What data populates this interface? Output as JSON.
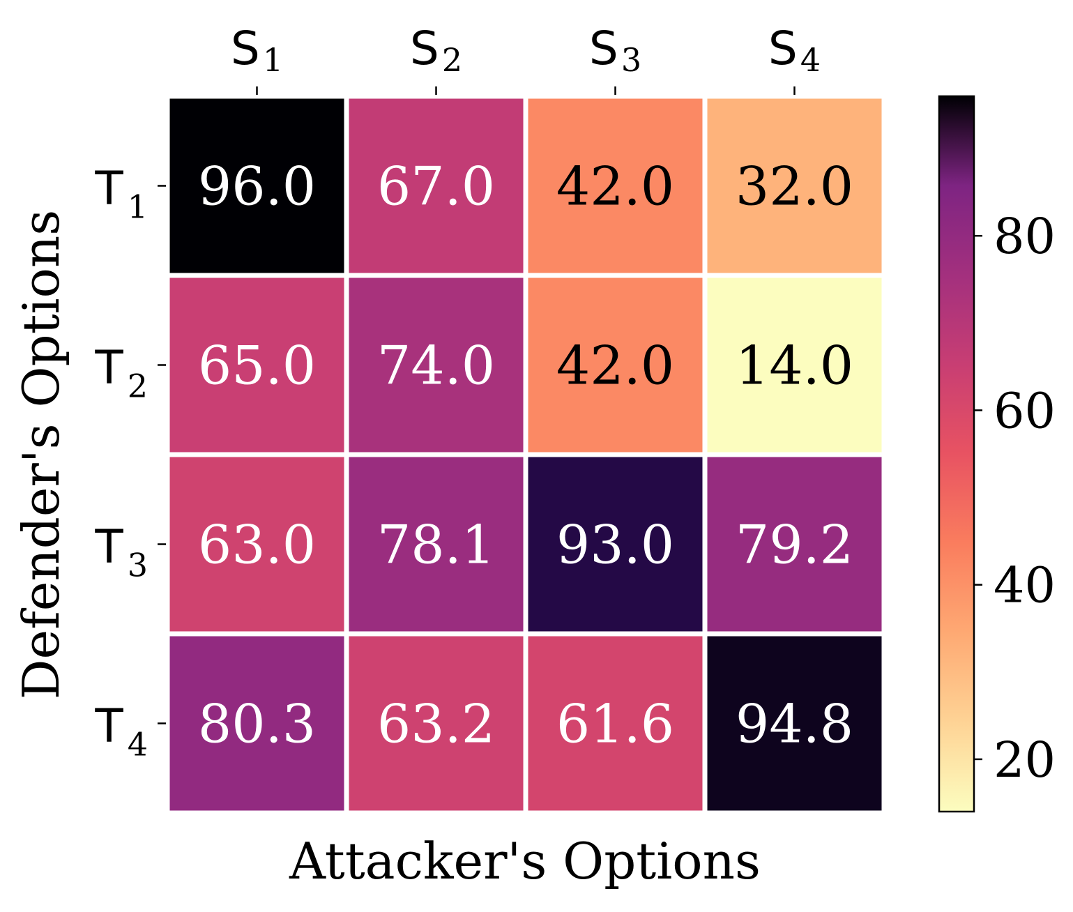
{
  "chart_data": {
    "type": "heatmap",
    "title": "",
    "xlabel": "Attacker's Options",
    "ylabel": "Defender's Options",
    "x_categories": [
      {
        "base": "S",
        "sub": "1"
      },
      {
        "base": "S",
        "sub": "2"
      },
      {
        "base": "S",
        "sub": "3"
      },
      {
        "base": "S",
        "sub": "4"
      }
    ],
    "y_categories": [
      {
        "base": "T",
        "sub": "1"
      },
      {
        "base": "T",
        "sub": "2"
      },
      {
        "base": "T",
        "sub": "3"
      },
      {
        "base": "T",
        "sub": "4"
      }
    ],
    "values": [
      [
        96.0,
        67.0,
        42.0,
        32.0
      ],
      [
        65.0,
        74.0,
        42.0,
        14.0
      ],
      [
        63.0,
        78.1,
        93.0,
        79.2
      ],
      [
        80.3,
        63.2,
        61.6,
        94.8
      ]
    ],
    "value_labels": [
      [
        "96.0",
        "67.0",
        "42.0",
        "32.0"
      ],
      [
        "65.0",
        "74.0",
        "42.0",
        "14.0"
      ],
      [
        "63.0",
        "78.1",
        "93.0",
        "79.2"
      ],
      [
        "80.3",
        "63.2",
        "61.6",
        "94.8"
      ]
    ],
    "colormap": "magma_r",
    "colorbar": {
      "range": [
        14.0,
        96.0
      ],
      "ticks": [
        20,
        40,
        60,
        80
      ],
      "tick_labels": [
        "20",
        "40",
        "60",
        "80"
      ],
      "placement": "right"
    },
    "x_ticks_position": "top",
    "grid": false,
    "colors": {
      "cell_separator": "#ffffff",
      "dark_text": "#000000",
      "light_text": "#ffffff"
    }
  }
}
